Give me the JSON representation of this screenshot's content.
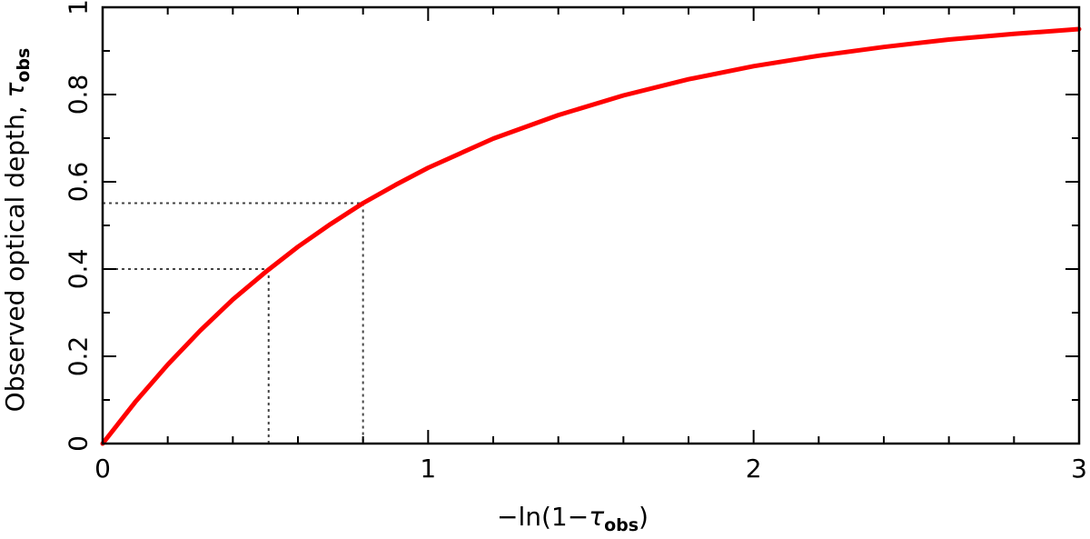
{
  "chart_data": {
    "type": "line",
    "title": "",
    "xlabel": {
      "prefix": "−ln(1−",
      "symbol": "τ",
      "subscript": "obs",
      "suffix": ")"
    },
    "ylabel": {
      "text": "Observed optical depth, ",
      "symbol": "τ",
      "subscript": "obs"
    },
    "xlim": [
      0,
      3
    ],
    "ylim": [
      0,
      1
    ],
    "x_major_ticks": [
      0,
      1,
      2,
      3
    ],
    "x_tick_labels": [
      "0",
      "1",
      "2",
      "3"
    ],
    "y_major_ticks": [
      0,
      0.2,
      0.4,
      0.6,
      0.8,
      1
    ],
    "y_tick_labels": [
      "0",
      "0.2",
      "0.4",
      "0.6",
      "0.8",
      "1"
    ],
    "x_minor_step": 0.2,
    "y_minor_step": 0.1,
    "grid": false,
    "series": [
      {
        "color": "#ff0000",
        "style": "solid",
        "x": [
          0,
          0.1,
          0.2,
          0.3,
          0.4,
          0.5,
          0.6,
          0.7,
          0.8,
          0.9,
          1.0,
          1.2,
          1.4,
          1.6,
          1.8,
          2.0,
          2.2,
          2.4,
          2.6,
          2.8,
          3.0
        ],
        "y": [
          0,
          0.095,
          0.181,
          0.259,
          0.33,
          0.393,
          0.451,
          0.503,
          0.551,
          0.593,
          0.632,
          0.699,
          0.753,
          0.798,
          0.835,
          0.865,
          0.889,
          0.909,
          0.926,
          0.939,
          0.95
        ]
      }
    ],
    "reference_lines": [
      {
        "x": 0.51,
        "y": 0.4,
        "style": "dotted",
        "color": "#444444"
      },
      {
        "x": 0.8,
        "y": 0.551,
        "style": "dotted",
        "color": "#444444"
      }
    ]
  }
}
